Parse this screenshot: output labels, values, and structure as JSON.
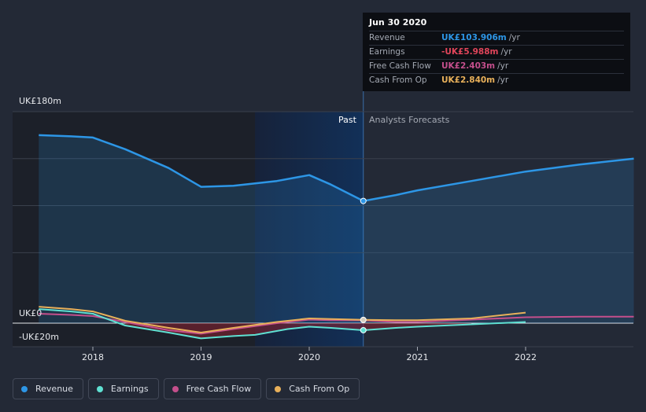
{
  "colors": {
    "revenue": "#2d96e6",
    "earnings": "#5fe0d2",
    "free_cash_flow": "#c44f8c",
    "cash_from_op": "#e8b05a",
    "background": "#232936",
    "tooltip_bg": "#0c0e13",
    "negative": "#e0455a"
  },
  "tooltip": {
    "date": "Jun 30 2020",
    "rows": [
      {
        "label": "Revenue",
        "value": "UK£103.906m",
        "unit": "/yr"
      },
      {
        "label": "Earnings",
        "value": "-UK£5.988m",
        "unit": "/yr"
      },
      {
        "label": "Free Cash Flow",
        "value": "UK£2.403m",
        "unit": "/yr"
      },
      {
        "label": "Cash From Op",
        "value": "UK£2.840m",
        "unit": "/yr"
      }
    ]
  },
  "chart_data": {
    "type": "line",
    "y_top_label": "UK£180m",
    "y_zero_label": "UK£0",
    "y_bottom_label": "-UK£20m",
    "ylim": [
      -20,
      180
    ],
    "x_ticks": [
      "2018",
      "2019",
      "2020",
      "2021",
      "2022"
    ],
    "past_label": "Past",
    "forecast_label": "Analysts Forecasts",
    "divider_x": 2020.5,
    "highlight_start_x": 2019.5,
    "xlim": [
      2017.25,
      2023.0
    ],
    "grid": true,
    "series": [
      {
        "name": "Revenue",
        "key": "revenue",
        "area": true,
        "points": [
          [
            2017.5,
            160
          ],
          [
            2017.8,
            159
          ],
          [
            2018.0,
            158
          ],
          [
            2018.3,
            148
          ],
          [
            2018.7,
            132
          ],
          [
            2019.0,
            116
          ],
          [
            2019.3,
            117
          ],
          [
            2019.7,
            121
          ],
          [
            2020.0,
            126
          ],
          [
            2020.2,
            118
          ],
          [
            2020.5,
            104
          ],
          [
            2020.8,
            109
          ],
          [
            2021.0,
            113
          ],
          [
            2021.5,
            121
          ],
          [
            2022.0,
            129
          ],
          [
            2022.5,
            135
          ],
          [
            2023.0,
            140
          ]
        ]
      },
      {
        "name": "Earnings",
        "key": "earnings",
        "points": [
          [
            2017.5,
            12
          ],
          [
            2017.8,
            10
          ],
          [
            2018.0,
            8
          ],
          [
            2018.3,
            -2
          ],
          [
            2018.7,
            -8
          ],
          [
            2019.0,
            -13
          ],
          [
            2019.3,
            -11
          ],
          [
            2019.5,
            -10
          ],
          [
            2019.8,
            -5
          ],
          [
            2020.0,
            -3
          ],
          [
            2020.2,
            -4
          ],
          [
            2020.5,
            -6
          ],
          [
            2020.8,
            -4
          ],
          [
            2021.0,
            -3
          ],
          [
            2021.5,
            -1
          ],
          [
            2022.0,
            1
          ]
        ]
      },
      {
        "name": "Free Cash Flow",
        "key": "free_cash_flow",
        "points": [
          [
            2017.5,
            8
          ],
          [
            2017.8,
            7
          ],
          [
            2018.0,
            6
          ],
          [
            2018.3,
            1
          ],
          [
            2018.7,
            -6
          ],
          [
            2019.0,
            -9
          ],
          [
            2019.3,
            -5
          ],
          [
            2019.7,
            0
          ],
          [
            2020.0,
            3
          ],
          [
            2020.2,
            2.5
          ],
          [
            2020.5,
            2.4
          ],
          [
            2020.8,
            1
          ],
          [
            2021.0,
            1
          ],
          [
            2021.5,
            3
          ],
          [
            2022.0,
            5
          ],
          [
            2022.5,
            5.5
          ],
          [
            2023.0,
            5.5
          ]
        ]
      },
      {
        "name": "Cash From Op",
        "key": "cash_from_op",
        "points": [
          [
            2017.5,
            14
          ],
          [
            2017.8,
            12
          ],
          [
            2018.0,
            10
          ],
          [
            2018.3,
            2
          ],
          [
            2018.7,
            -4
          ],
          [
            2019.0,
            -8
          ],
          [
            2019.3,
            -4
          ],
          [
            2019.7,
            1
          ],
          [
            2020.0,
            4
          ],
          [
            2020.2,
            3.5
          ],
          [
            2020.5,
            2.8
          ],
          [
            2020.8,
            2.5
          ],
          [
            2021.0,
            2.5
          ],
          [
            2021.5,
            4
          ],
          [
            2022.0,
            9
          ]
        ]
      }
    ],
    "markers": [
      {
        "series": "revenue",
        "x": 2020.5,
        "y": 104
      },
      {
        "series": "earnings",
        "x": 2020.5,
        "y": -6
      },
      {
        "series": "cash_from_op",
        "x": 2020.5,
        "y": 2.8
      }
    ]
  },
  "legend": [
    {
      "label": "Revenue",
      "key": "revenue"
    },
    {
      "label": "Earnings",
      "key": "earnings"
    },
    {
      "label": "Free Cash Flow",
      "key": "free_cash_flow"
    },
    {
      "label": "Cash From Op",
      "key": "cash_from_op"
    }
  ]
}
